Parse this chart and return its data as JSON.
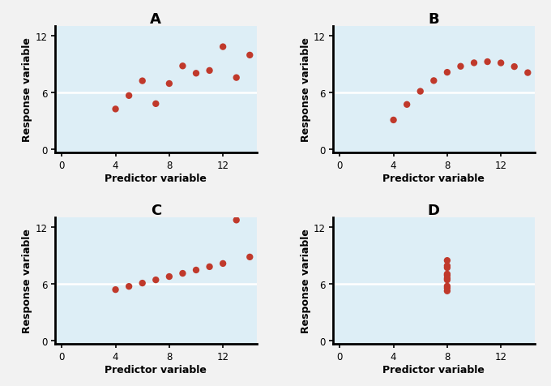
{
  "panels": [
    "A",
    "B",
    "C",
    "D"
  ],
  "datasets": {
    "A": {
      "x": [
        10,
        8,
        13,
        9,
        11,
        14,
        6,
        4,
        12,
        7,
        5
      ],
      "y": [
        8.04,
        6.95,
        7.58,
        8.81,
        8.33,
        9.96,
        7.24,
        4.26,
        10.84,
        4.82,
        5.68
      ]
    },
    "B": {
      "x": [
        10,
        8,
        13,
        9,
        11,
        14,
        6,
        4,
        12,
        7,
        5
      ],
      "y": [
        9.14,
        8.14,
        8.74,
        8.77,
        9.26,
        8.1,
        6.13,
        3.1,
        9.13,
        7.26,
        4.74
      ]
    },
    "C": {
      "x": [
        10,
        8,
        13,
        9,
        11,
        14,
        6,
        4,
        12,
        7,
        5
      ],
      "y": [
        7.46,
        6.77,
        12.74,
        7.11,
        7.81,
        8.84,
        6.08,
        5.39,
        8.15,
        6.42,
        5.73
      ]
    },
    "D": {
      "x": [
        8,
        8,
        8,
        8,
        8,
        8,
        8,
        8,
        8,
        8
      ],
      "y": [
        6.58,
        5.76,
        7.71,
        8.47,
        7.04,
        5.25,
        5.56,
        7.91,
        6.89,
        6.42
      ]
    }
  },
  "dot_color": "#c0392b",
  "bg_color": "#ddeef6",
  "hline_color": "#ffffff",
  "hline_y": 6,
  "xlabel": "Predictor variable",
  "ylabel": "Response variable",
  "xlim": [
    -0.5,
    14.5
  ],
  "ylim": [
    -0.3,
    13.0
  ],
  "xticks": [
    0,
    4,
    8,
    12
  ],
  "yticks": [
    0,
    6,
    12
  ],
  "figure_bg": "#f2f2f2",
  "marker_size": 6,
  "label_fontsize": 9,
  "panel_label_fontsize": 13,
  "tick_fontsize": 8.5
}
